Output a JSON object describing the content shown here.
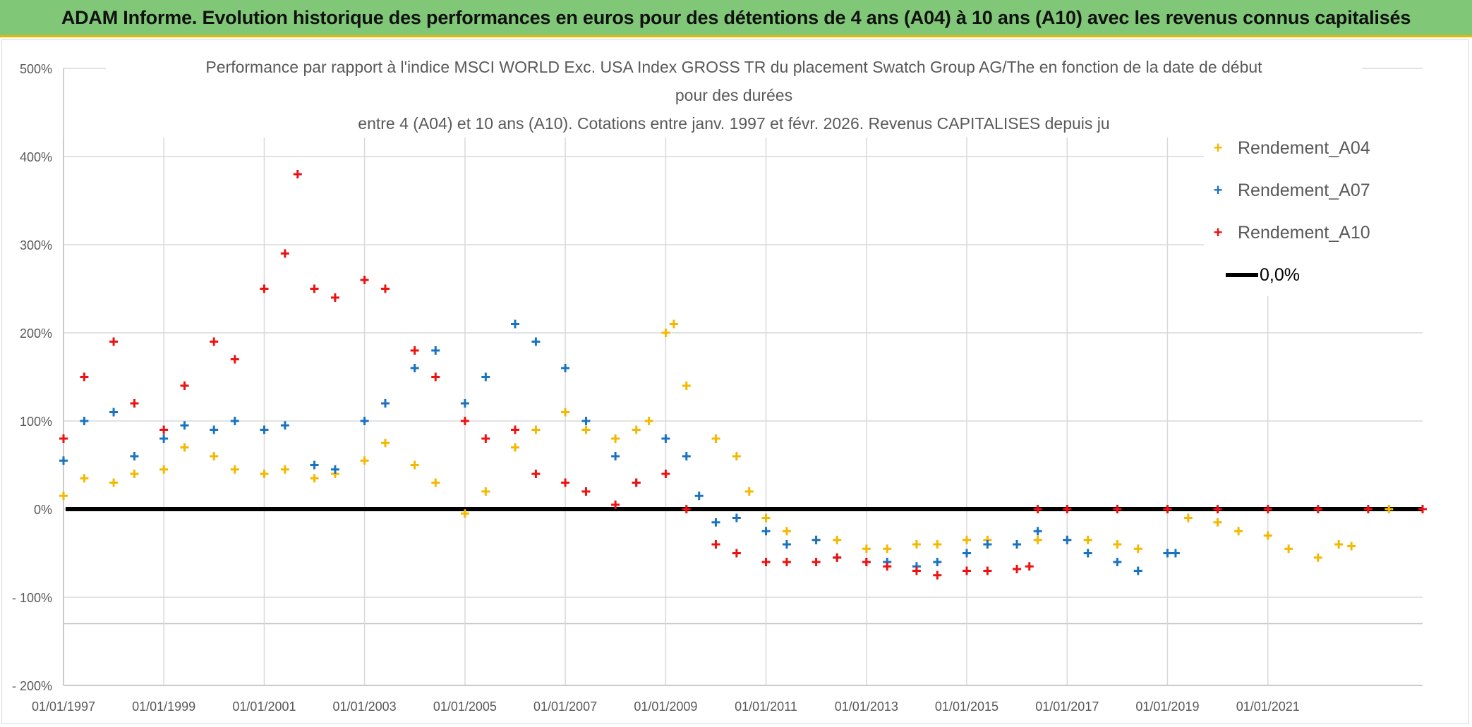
{
  "banner": "ADAM Informe. Evolution historique des performances en euros pour des détentions de 4 ans (A04) à 10 ans (A10) avec les revenus connus capitalisés",
  "chart_data": {
    "type": "scatter",
    "title_lines": [
      "Performance par rapport à l'indice MSCI WORLD Exc. USA Index GROSS TR  du placement Swatch Group AG/The en fonction de la date de début",
      "pour des durées",
      "entre 4 (A04) et 10 ans (A10). Cotations entre janv. 1997 et févr. 2026. Revenus CAPITALISES depuis ju"
    ],
    "x_axis": {
      "type": "date",
      "range": [
        "1997-01-01",
        "2024-02-01"
      ],
      "tick_labels": [
        "01/01/1997",
        "01/01/1999",
        "01/01/2001",
        "01/01/2003",
        "01/01/2005",
        "01/01/2007",
        "01/01/2009",
        "01/01/2011",
        "01/01/2013",
        "01/01/2015",
        "01/01/2017",
        "01/01/2019",
        "01/01/2021"
      ]
    },
    "y_axis": {
      "range": [
        -200,
        500
      ],
      "unit": "%",
      "tick_labels": [
        "500%",
        "400%",
        "300%",
        "200%",
        "100%",
        "0%",
        "- 100%",
        "- 200%"
      ]
    },
    "grid": true,
    "legend_position": "top-right",
    "series": [
      {
        "name": "Rendement_A04",
        "color": "#f5b800",
        "marker": "+",
        "points": [
          [
            "1997-01-01",
            15
          ],
          [
            "1997-06-01",
            35
          ],
          [
            "1998-01-01",
            30
          ],
          [
            "1998-06-01",
            40
          ],
          [
            "1999-01-01",
            45
          ],
          [
            "1999-06-01",
            70
          ],
          [
            "2000-01-01",
            60
          ],
          [
            "2000-06-01",
            45
          ],
          [
            "2001-01-01",
            40
          ],
          [
            "2001-06-01",
            45
          ],
          [
            "2002-01-01",
            35
          ],
          [
            "2002-06-01",
            40
          ],
          [
            "2003-01-01",
            55
          ],
          [
            "2003-06-01",
            75
          ],
          [
            "2004-01-01",
            50
          ],
          [
            "2004-06-01",
            30
          ],
          [
            "2005-01-01",
            -5
          ],
          [
            "2005-06-01",
            20
          ],
          [
            "2006-01-01",
            70
          ],
          [
            "2006-06-01",
            90
          ],
          [
            "2007-01-01",
            110
          ],
          [
            "2007-06-01",
            90
          ],
          [
            "2008-01-01",
            80
          ],
          [
            "2008-06-01",
            90
          ],
          [
            "2008-09-01",
            100
          ],
          [
            "2009-01-01",
            200
          ],
          [
            "2009-03-01",
            210
          ],
          [
            "2009-06-01",
            140
          ],
          [
            "2010-01-01",
            80
          ],
          [
            "2010-06-01",
            60
          ],
          [
            "2010-09-01",
            20
          ],
          [
            "2011-01-01",
            -10
          ],
          [
            "2011-06-01",
            -25
          ],
          [
            "2012-01-01",
            -35
          ],
          [
            "2012-06-01",
            -35
          ],
          [
            "2013-01-01",
            -45
          ],
          [
            "2013-06-01",
            -45
          ],
          [
            "2014-01-01",
            -40
          ],
          [
            "2014-06-01",
            -40
          ],
          [
            "2015-01-01",
            -35
          ],
          [
            "2015-06-01",
            -35
          ],
          [
            "2016-01-01",
            -40
          ],
          [
            "2016-06-01",
            -35
          ],
          [
            "2017-01-01",
            -35
          ],
          [
            "2017-06-01",
            -35
          ],
          [
            "2018-01-01",
            -40
          ],
          [
            "2018-06-01",
            -45
          ],
          [
            "2019-01-01",
            0
          ],
          [
            "2019-06-01",
            -10
          ],
          [
            "2020-01-01",
            -15
          ],
          [
            "2020-06-01",
            -25
          ],
          [
            "2021-01-01",
            -30
          ],
          [
            "2021-06-01",
            -45
          ],
          [
            "2022-01-01",
            -55
          ],
          [
            "2022-06-01",
            -40
          ],
          [
            "2022-09-01",
            -42
          ],
          [
            "2023-01-01",
            0
          ],
          [
            "2023-06-01",
            0
          ],
          [
            "2024-02-01",
            0
          ]
        ]
      },
      {
        "name": "Rendement_A07",
        "color": "#1a73c0",
        "marker": "+",
        "points": [
          [
            "1997-01-01",
            55
          ],
          [
            "1997-06-01",
            100
          ],
          [
            "1998-01-01",
            110
          ],
          [
            "1998-06-01",
            60
          ],
          [
            "1999-01-01",
            80
          ],
          [
            "1999-06-01",
            95
          ],
          [
            "2000-01-01",
            90
          ],
          [
            "2000-06-01",
            100
          ],
          [
            "2001-01-01",
            90
          ],
          [
            "2001-06-01",
            95
          ],
          [
            "2002-01-01",
            50
          ],
          [
            "2002-06-01",
            45
          ],
          [
            "2003-01-01",
            100
          ],
          [
            "2003-06-01",
            120
          ],
          [
            "2004-01-01",
            160
          ],
          [
            "2004-06-01",
            180
          ],
          [
            "2005-01-01",
            120
          ],
          [
            "2005-06-01",
            150
          ],
          [
            "2006-01-01",
            210
          ],
          [
            "2006-06-01",
            190
          ],
          [
            "2007-01-01",
            160
          ],
          [
            "2007-06-01",
            100
          ],
          [
            "2008-01-01",
            60
          ],
          [
            "2008-06-01",
            30
          ],
          [
            "2009-01-01",
            80
          ],
          [
            "2009-06-01",
            60
          ],
          [
            "2009-09-01",
            15
          ],
          [
            "2010-01-01",
            -15
          ],
          [
            "2010-06-01",
            -10
          ],
          [
            "2011-01-01",
            -25
          ],
          [
            "2011-06-01",
            -40
          ],
          [
            "2012-01-01",
            -35
          ],
          [
            "2012-06-01",
            -55
          ],
          [
            "2013-01-01",
            -60
          ],
          [
            "2013-06-01",
            -60
          ],
          [
            "2014-01-01",
            -65
          ],
          [
            "2014-06-01",
            -60
          ],
          [
            "2015-01-01",
            -50
          ],
          [
            "2015-06-01",
            -40
          ],
          [
            "2016-01-01",
            -40
          ],
          [
            "2016-06-01",
            -25
          ],
          [
            "2017-01-01",
            -35
          ],
          [
            "2017-06-01",
            -50
          ],
          [
            "2018-01-01",
            -60
          ],
          [
            "2018-06-01",
            -70
          ],
          [
            "2019-01-01",
            -50
          ],
          [
            "2019-03-01",
            -50
          ]
        ]
      },
      {
        "name": "Rendement_A10",
        "color": "#ee1111",
        "marker": "+",
        "points": [
          [
            "1997-01-01",
            80
          ],
          [
            "1997-06-01",
            150
          ],
          [
            "1998-01-01",
            190
          ],
          [
            "1998-06-01",
            120
          ],
          [
            "1999-01-01",
            90
          ],
          [
            "1999-06-01",
            140
          ],
          [
            "2000-01-01",
            190
          ],
          [
            "2000-06-01",
            170
          ],
          [
            "2001-01-01",
            250
          ],
          [
            "2001-06-01",
            290
          ],
          [
            "2001-09-01",
            380
          ],
          [
            "2002-01-01",
            250
          ],
          [
            "2002-06-01",
            240
          ],
          [
            "2003-01-01",
            260
          ],
          [
            "2003-06-01",
            250
          ],
          [
            "2004-01-01",
            180
          ],
          [
            "2004-06-01",
            150
          ],
          [
            "2005-01-01",
            100
          ],
          [
            "2005-06-01",
            80
          ],
          [
            "2006-01-01",
            90
          ],
          [
            "2006-06-01",
            40
          ],
          [
            "2007-01-01",
            30
          ],
          [
            "2007-06-01",
            20
          ],
          [
            "2008-01-01",
            5
          ],
          [
            "2008-06-01",
            30
          ],
          [
            "2009-01-01",
            40
          ],
          [
            "2009-06-01",
            0
          ],
          [
            "2010-01-01",
            -40
          ],
          [
            "2010-06-01",
            -50
          ],
          [
            "2011-01-01",
            -60
          ],
          [
            "2011-06-01",
            -60
          ],
          [
            "2012-01-01",
            -60
          ],
          [
            "2012-06-01",
            -55
          ],
          [
            "2013-01-01",
            -60
          ],
          [
            "2013-06-01",
            -65
          ],
          [
            "2014-01-01",
            -70
          ],
          [
            "2014-06-01",
            -75
          ],
          [
            "2015-01-01",
            -70
          ],
          [
            "2015-06-01",
            -70
          ],
          [
            "2016-01-01",
            -68
          ],
          [
            "2016-04-01",
            -65
          ],
          [
            "2016-06-01",
            0
          ],
          [
            "2017-01-01",
            0
          ],
          [
            "2018-01-01",
            0
          ],
          [
            "2019-01-01",
            0
          ],
          [
            "2020-01-01",
            0
          ],
          [
            "2021-01-01",
            0
          ],
          [
            "2022-01-01",
            0
          ],
          [
            "2023-01-01",
            0
          ],
          [
            "2024-02-01",
            0
          ]
        ]
      }
    ],
    "reference_line": {
      "name": "0,0%",
      "value": 0,
      "color": "#000000"
    }
  }
}
